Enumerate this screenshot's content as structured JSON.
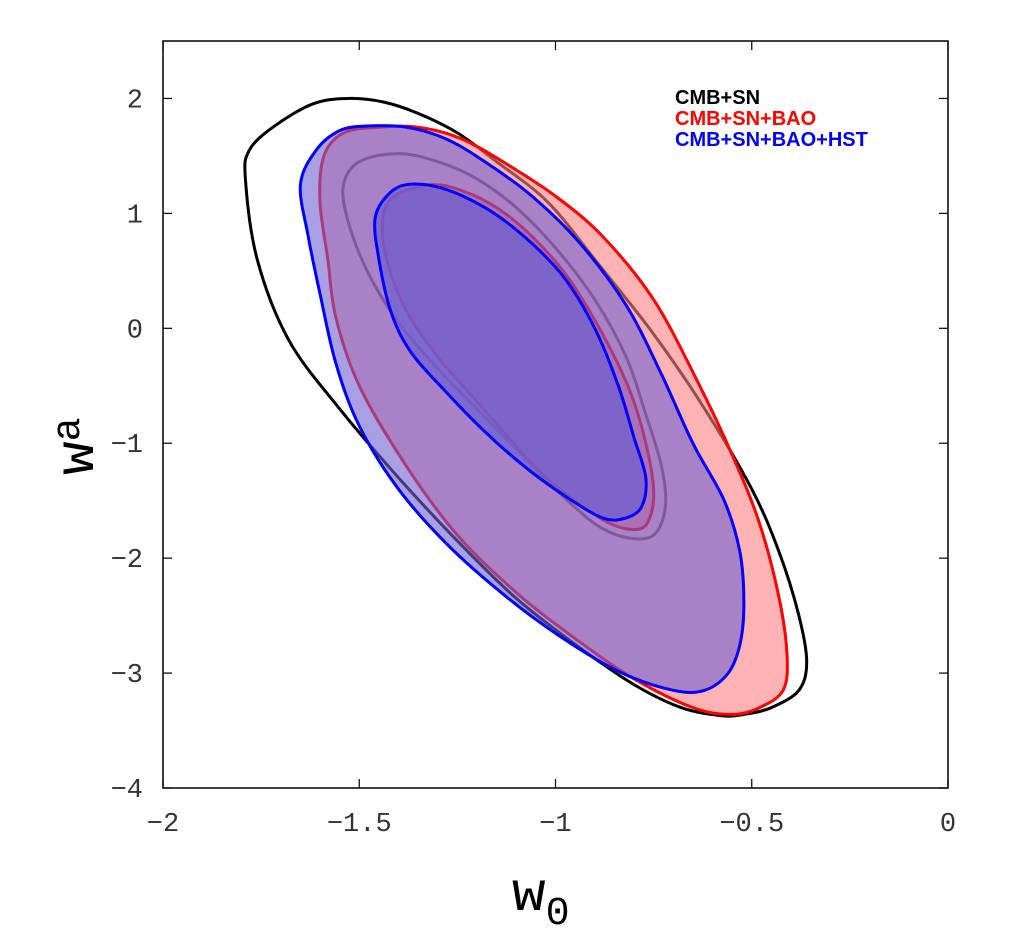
{
  "chart_data": {
    "type": "contour",
    "title": "",
    "xlabel": {
      "main": "w",
      "sub": "0"
    },
    "ylabel": {
      "main": "w",
      "sub": "a"
    },
    "xlim": [
      -2,
      0
    ],
    "ylim": [
      -4,
      2.5
    ],
    "xticks": [
      -2,
      -1.5,
      -1,
      -0.5,
      0
    ],
    "xtick_labels": [
      "−2",
      "−1.5",
      "−1",
      "−0.5",
      "0"
    ],
    "yticks": [
      -4,
      -3,
      -2,
      -1,
      0,
      1,
      2
    ],
    "ytick_labels": [
      "−4",
      "−3",
      "−2",
      "−1",
      "0",
      "1",
      "2"
    ],
    "grid": false,
    "legend_position": "top-right",
    "series": [
      {
        "name": "CMB+SN",
        "color": "#000000",
        "fill": "none",
        "contours": [
          {
            "level": "95%",
            "points": [
              [
                -1.53,
                2.0
              ],
              [
                -1.44,
                1.97
              ],
              [
                -1.35,
                1.87
              ],
              [
                -1.25,
                1.7
              ],
              [
                -1.15,
                1.45
              ],
              [
                -1.02,
                1.1
              ],
              [
                -0.9,
                0.6
              ],
              [
                -0.75,
                -0.05
              ],
              [
                -0.62,
                -0.7
              ],
              [
                -0.5,
                -1.4
              ],
              [
                -0.43,
                -1.95
              ],
              [
                -0.38,
                -2.5
              ],
              [
                -0.36,
                -2.9
              ],
              [
                -0.38,
                -3.15
              ],
              [
                -0.45,
                -3.3
              ],
              [
                -0.52,
                -3.36
              ],
              [
                -0.58,
                -3.37
              ],
              [
                -0.68,
                -3.3
              ],
              [
                -0.8,
                -3.1
              ],
              [
                -0.95,
                -2.75
              ],
              [
                -1.1,
                -2.35
              ],
              [
                -1.25,
                -1.85
              ],
              [
                -1.4,
                -1.3
              ],
              [
                -1.55,
                -0.7
              ],
              [
                -1.68,
                -0.1
              ],
              [
                -1.76,
                0.6
              ],
              [
                -1.79,
                1.3
              ],
              [
                -1.78,
                1.55
              ],
              [
                -1.72,
                1.75
              ],
              [
                -1.62,
                1.95
              ]
            ]
          },
          {
            "level": "68%",
            "points": [
              [
                -1.4,
                1.52
              ],
              [
                -1.3,
                1.45
              ],
              [
                -1.2,
                1.3
              ],
              [
                -1.1,
                1.05
              ],
              [
                -1.0,
                0.7
              ],
              [
                -0.9,
                0.25
              ],
              [
                -0.82,
                -0.25
              ],
              [
                -0.77,
                -0.75
              ],
              [
                -0.73,
                -1.2
              ],
              [
                -0.72,
                -1.55
              ],
              [
                -0.75,
                -1.8
              ],
              [
                -0.82,
                -1.82
              ],
              [
                -0.9,
                -1.7
              ],
              [
                -1.0,
                -1.4
              ],
              [
                -1.1,
                -1.05
              ],
              [
                -1.2,
                -0.7
              ],
              [
                -1.3,
                -0.35
              ],
              [
                -1.4,
                0.05
              ],
              [
                -1.48,
                0.5
              ],
              [
                -1.53,
                0.95
              ],
              [
                -1.54,
                1.25
              ],
              [
                -1.5,
                1.45
              ]
            ]
          }
        ]
      },
      {
        "name": "CMB+SN+BAO",
        "color": "#ff0000",
        "fill": "#ff8080",
        "contours": [
          {
            "level": "95%",
            "points": [
              [
                -1.45,
                1.75
              ],
              [
                -1.35,
                1.75
              ],
              [
                -1.24,
                1.65
              ],
              [
                -1.12,
                1.42
              ],
              [
                -1.0,
                1.15
              ],
              [
                -0.88,
                0.8
              ],
              [
                -0.75,
                0.25
              ],
              [
                -0.64,
                -0.45
              ],
              [
                -0.55,
                -1.1
              ],
              [
                -0.48,
                -1.7
              ],
              [
                -0.43,
                -2.35
              ],
              [
                -0.41,
                -2.85
              ],
              [
                -0.42,
                -3.15
              ],
              [
                -0.48,
                -3.3
              ],
              [
                -0.55,
                -3.36
              ],
              [
                -0.65,
                -3.3
              ],
              [
                -0.8,
                -3.05
              ],
              [
                -0.95,
                -2.7
              ],
              [
                -1.1,
                -2.3
              ],
              [
                -1.25,
                -1.8
              ],
              [
                -1.38,
                -1.2
              ],
              [
                -1.5,
                -0.5
              ],
              [
                -1.56,
                0.1
              ],
              [
                -1.58,
                0.6
              ],
              [
                -1.6,
                1.1
              ],
              [
                -1.59,
                1.5
              ],
              [
                -1.54,
                1.7
              ]
            ]
          },
          {
            "level": "68%",
            "points": [
              [
                -1.32,
                1.25
              ],
              [
                -1.24,
                1.2
              ],
              [
                -1.15,
                1.05
              ],
              [
                -1.06,
                0.8
              ],
              [
                -0.97,
                0.45
              ],
              [
                -0.88,
                -0.05
              ],
              [
                -0.81,
                -0.55
              ],
              [
                -0.77,
                -1.0
              ],
              [
                -0.75,
                -1.4
              ],
              [
                -0.76,
                -1.65
              ],
              [
                -0.79,
                -1.75
              ],
              [
                -0.86,
                -1.7
              ],
              [
                -0.95,
                -1.5
              ],
              [
                -1.04,
                -1.25
              ],
              [
                -1.12,
                -0.95
              ],
              [
                -1.21,
                -0.6
              ],
              [
                -1.3,
                -0.25
              ],
              [
                -1.38,
                0.15
              ],
              [
                -1.43,
                0.6
              ],
              [
                -1.44,
                0.95
              ],
              [
                -1.41,
                1.15
              ]
            ]
          }
        ]
      },
      {
        "name": "CMB+SN+BAO+HST",
        "color": "#0000ff",
        "fill": "#7060d0",
        "contours": [
          {
            "level": "95%",
            "points": [
              [
                -1.48,
                1.76
              ],
              [
                -1.38,
                1.75
              ],
              [
                -1.28,
                1.65
              ],
              [
                -1.18,
                1.45
              ],
              [
                -1.06,
                1.15
              ],
              [
                -0.94,
                0.75
              ],
              [
                -0.82,
                0.2
              ],
              [
                -0.73,
                -0.4
              ],
              [
                -0.65,
                -1.0
              ],
              [
                -0.57,
                -1.5
              ],
              [
                -0.53,
                -1.95
              ],
              [
                -0.52,
                -2.4
              ],
              [
                -0.53,
                -2.75
              ],
              [
                -0.56,
                -3.0
              ],
              [
                -0.62,
                -3.15
              ],
              [
                -0.7,
                -3.15
              ],
              [
                -0.83,
                -3.0
              ],
              [
                -0.98,
                -2.7
              ],
              [
                -1.12,
                -2.35
              ],
              [
                -1.27,
                -1.9
              ],
              [
                -1.4,
                -1.4
              ],
              [
                -1.5,
                -0.85
              ],
              [
                -1.56,
                -0.3
              ],
              [
                -1.6,
                0.3
              ],
              [
                -1.63,
                0.8
              ],
              [
                -1.65,
                1.25
              ],
              [
                -1.61,
                1.55
              ],
              [
                -1.55,
                1.72
              ]
            ]
          },
          {
            "level": "68%",
            "points": [
              [
                -1.38,
                1.25
              ],
              [
                -1.29,
                1.22
              ],
              [
                -1.18,
                1.05
              ],
              [
                -1.08,
                0.8
              ],
              [
                -0.98,
                0.45
              ],
              [
                -0.9,
                0.0
              ],
              [
                -0.84,
                -0.5
              ],
              [
                -0.8,
                -0.95
              ],
              [
                -0.77,
                -1.3
              ],
              [
                -0.78,
                -1.55
              ],
              [
                -0.82,
                -1.65
              ],
              [
                -0.88,
                -1.65
              ],
              [
                -0.98,
                -1.45
              ],
              [
                -1.08,
                -1.2
              ],
              [
                -1.18,
                -0.9
              ],
              [
                -1.28,
                -0.55
              ],
              [
                -1.37,
                -0.2
              ],
              [
                -1.42,
                0.15
              ],
              [
                -1.45,
                0.6
              ],
              [
                -1.46,
                0.95
              ],
              [
                -1.43,
                1.15
              ]
            ]
          }
        ]
      }
    ]
  }
}
